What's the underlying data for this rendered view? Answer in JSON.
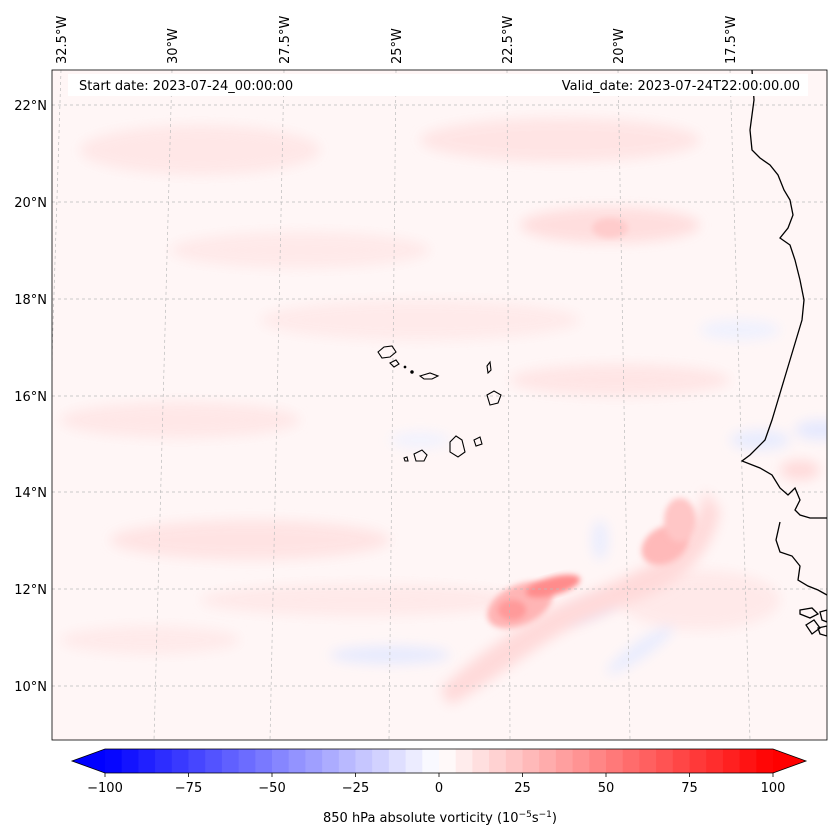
{
  "header": {
    "start_date": "Start date: 2023-07-24_00:00:00",
    "valid_date": "Valid_date: 2023-07-24T22:00:00.00"
  },
  "axes": {
    "longitude_labels": [
      "32.5°W",
      "30°W",
      "27.5°W",
      "25°W",
      "22.5°W",
      "20°W",
      "17.5°W"
    ],
    "latitude_labels": [
      "22°N",
      "20°N",
      "18°N",
      "16°N",
      "14°N",
      "12°N",
      "10°N"
    ]
  },
  "colorbar": {
    "label": "850 hPa absolute vorticity (10",
    "label_exp1": "−5",
    "label_mid": "s",
    "label_exp2": "−1",
    "label_end": ")",
    "ticks": [
      "−100",
      "−75",
      "−50",
      "−25",
      "0",
      "25",
      "50",
      "75",
      "100"
    ],
    "min": -100,
    "max": 100,
    "negative_color": "#0000ff",
    "positive_color": "#ff0000"
  },
  "colors": {
    "coastline": "#000000",
    "grid": "#bbbbbb",
    "background_field": "#fff5f5"
  }
}
